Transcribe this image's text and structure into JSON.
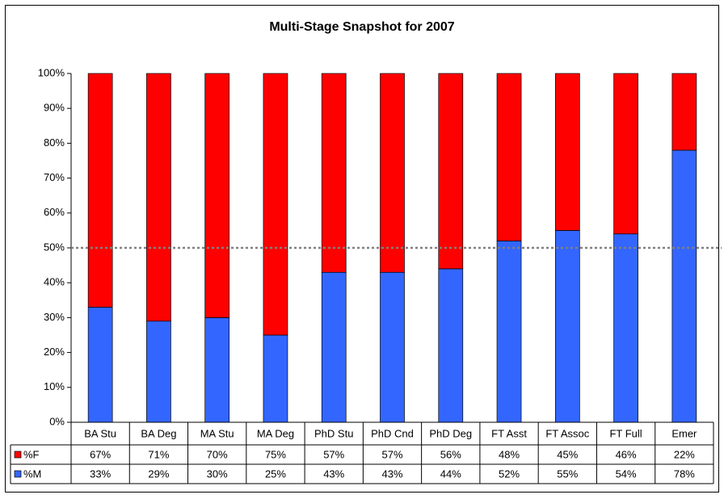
{
  "chart_data": {
    "type": "stacked_bar",
    "title": "Multi-Stage Snapshot for 2007",
    "categories": [
      "BA Stu",
      "BA Deg",
      "MA Stu",
      "MA Deg",
      "PhD Stu",
      "PhD Cnd",
      "PhD Deg",
      "FT Asst",
      "FT Assoc",
      "FT Full",
      "Emer"
    ],
    "series": [
      {
        "name": "%F",
        "color": "#ff0000",
        "values": [
          67,
          71,
          70,
          75,
          57,
          57,
          56,
          48,
          45,
          46,
          22
        ],
        "value_labels": [
          "67%",
          "71%",
          "70%",
          "75%",
          "57%",
          "57%",
          "56%",
          "48%",
          "45%",
          "46%",
          "22%"
        ]
      },
      {
        "name": "%M",
        "color": "#3366ff",
        "values": [
          33,
          29,
          30,
          25,
          43,
          43,
          44,
          52,
          55,
          54,
          78
        ],
        "value_labels": [
          "33%",
          "29%",
          "30%",
          "25%",
          "43%",
          "43%",
          "44%",
          "52%",
          "55%",
          "54%",
          "78%"
        ]
      }
    ],
    "ylim": [
      0,
      100
    ],
    "yticks": [
      {
        "value": 0,
        "label": "0%"
      },
      {
        "value": 10,
        "label": "10%"
      },
      {
        "value": 20,
        "label": "20%"
      },
      {
        "value": 30,
        "label": "30%"
      },
      {
        "value": 40,
        "label": "40%"
      },
      {
        "value": 50,
        "label": "50%"
      },
      {
        "value": 60,
        "label": "60%"
      },
      {
        "value": 70,
        "label": "70%"
      },
      {
        "value": 80,
        "label": "80%"
      },
      {
        "value": 90,
        "label": "90%"
      },
      {
        "value": 100,
        "label": "100%"
      }
    ],
    "reference_line": 50,
    "stack_order": [
      "%M",
      "%F"
    ]
  }
}
